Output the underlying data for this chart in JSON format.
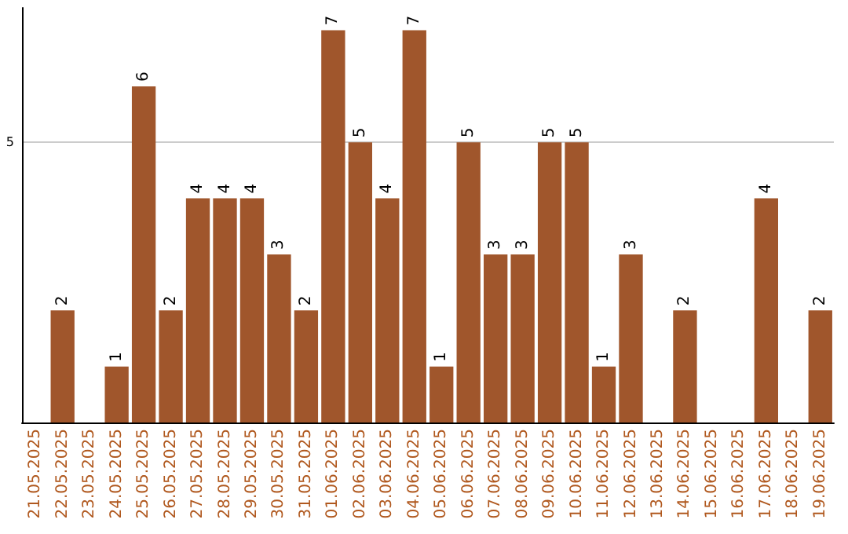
{
  "chart_data": {
    "type": "bar",
    "categories": [
      "21.05.2025",
      "22.05.2025",
      "23.05.2025",
      "24.05.2025",
      "25.05.2025",
      "26.05.2025",
      "27.05.2025",
      "28.05.2025",
      "29.05.2025",
      "30.05.2025",
      "31.05.2025",
      "01.06.2025",
      "02.06.2025",
      "03.06.2025",
      "04.06.2025",
      "05.06.2025",
      "06.06.2025",
      "07.06.2025",
      "08.06.2025",
      "09.06.2025",
      "10.06.2025",
      "11.06.2025",
      "12.06.2025",
      "13.06.2025",
      "14.06.2025",
      "15.06.2025",
      "16.06.2025",
      "17.06.2025",
      "18.06.2025",
      "19.06.2025"
    ],
    "values": [
      0,
      2,
      0,
      1,
      6,
      2,
      4,
      4,
      4,
      3,
      2,
      7,
      5,
      4,
      7,
      1,
      5,
      3,
      3,
      5,
      5,
      1,
      3,
      0,
      2,
      0,
      0,
      4,
      0,
      2
    ],
    "value_labels": [
      null,
      "2",
      null,
      "1",
      "6",
      "2",
      "4",
      "4",
      "4",
      "3",
      "2",
      "7",
      "5",
      "4",
      "7",
      "1",
      "5",
      "3",
      "3",
      "5",
      "5",
      "1",
      "3",
      null,
      "2",
      null,
      null,
      "4",
      null,
      "2"
    ],
    "color": "#a0562c",
    "ylim": [
      0,
      7.4
    ],
    "yticks": [
      5
    ],
    "grid": "y"
  }
}
